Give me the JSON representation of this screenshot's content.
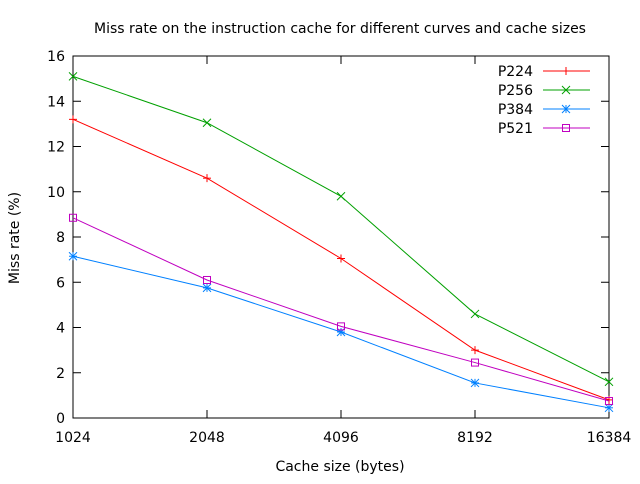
{
  "chart_data": {
    "type": "line",
    "title": "Miss rate on the instruction cache for different curves and cache sizes",
    "xlabel": "Cache size (bytes)",
    "ylabel": "Miss rate (%)",
    "x": [
      1024,
      2048,
      4096,
      8192,
      16384
    ],
    "x_scale": "log2",
    "ylim": [
      0,
      16
    ],
    "yticks": [
      0,
      2,
      4,
      6,
      8,
      10,
      12,
      14,
      16
    ],
    "grid": false,
    "legend_position": "top-right",
    "series": [
      {
        "name": "P224",
        "color": "#ff0000",
        "marker": "plus",
        "values": [
          13.2,
          10.6,
          7.05,
          3.0,
          0.8
        ]
      },
      {
        "name": "P256",
        "color": "#00a000",
        "marker": "cross",
        "values": [
          15.1,
          13.05,
          9.8,
          4.6,
          1.6
        ]
      },
      {
        "name": "P384",
        "color": "#0080ff",
        "marker": "star",
        "values": [
          7.15,
          5.75,
          3.8,
          1.55,
          0.45
        ]
      },
      {
        "name": "P521",
        "color": "#c000c0",
        "marker": "box",
        "values": [
          8.85,
          6.1,
          4.05,
          2.45,
          0.75
        ]
      }
    ]
  }
}
